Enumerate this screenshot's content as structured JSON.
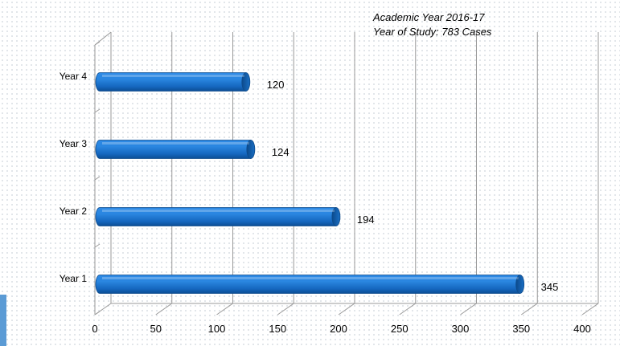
{
  "chart_data": {
    "type": "bar",
    "orientation": "horizontal",
    "style": "3d-cylinder",
    "title_lines": [
      "Academic Year 2016-17",
      "Year of Study: 783 Cases"
    ],
    "categories": [
      "Year 1",
      "Year 2",
      "Year 3",
      "Year 4"
    ],
    "values": [
      345,
      194,
      124,
      120
    ],
    "data_labels": [
      "345",
      "194",
      "124",
      "120"
    ],
    "xlim": [
      0,
      400
    ],
    "x_ticks": [
      "0",
      "50",
      "100",
      "150",
      "200",
      "250",
      "300",
      "350",
      "400"
    ],
    "xlabel": "",
    "ylabel": "",
    "grid": true,
    "legend": "none",
    "bar_color": "#1a73c9",
    "bar_edge_color": "#0d4a8a"
  }
}
